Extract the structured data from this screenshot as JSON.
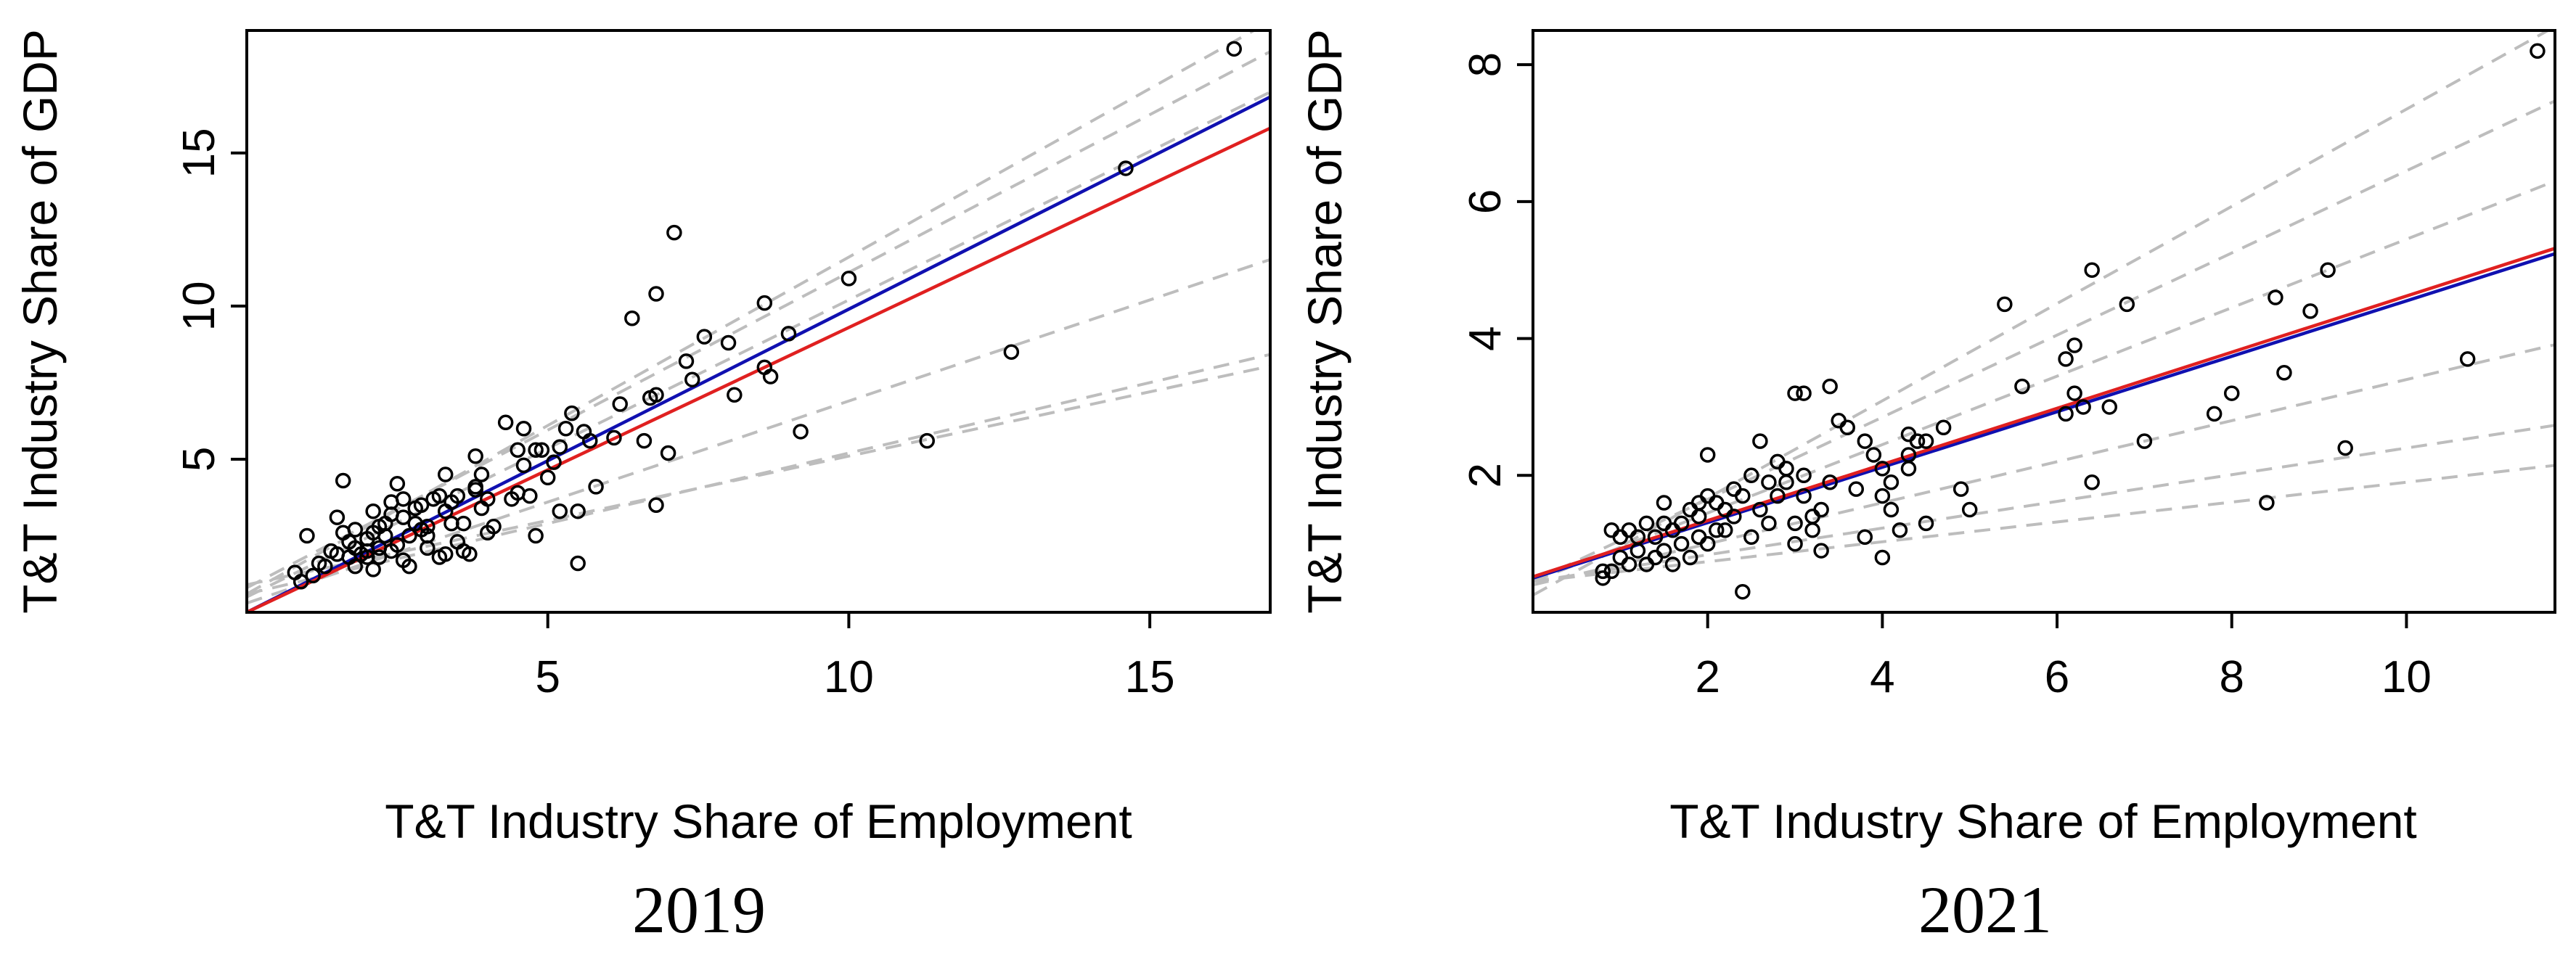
{
  "chart_data": [
    {
      "type": "scatter",
      "caption": "2019",
      "xlabel": "T&T Industry Share of Employment",
      "ylabel": "T&T Industry Share of GDP",
      "xlim": [
        0,
        17
      ],
      "ylim": [
        0,
        19
      ],
      "xticks": [
        5,
        10,
        15
      ],
      "yticks": [
        5,
        10,
        15
      ],
      "grid": false,
      "dashed_ref_lines": [
        {
          "intercept": 0.6,
          "slope": 1.1
        },
        {
          "intercept": 0.8,
          "slope": 1.03
        },
        {
          "intercept": 0.5,
          "slope": 0.97
        },
        {
          "intercept": 0.3,
          "slope": 0.66
        },
        {
          "intercept": 0.6,
          "slope": 0.46
        },
        {
          "intercept": 0.9,
          "slope": 0.42
        }
      ],
      "fit_lines": [
        {
          "name": "blue fit",
          "color": "#1010b0",
          "intercept": 0.0,
          "slope": 0.99
        },
        {
          "name": "red fit",
          "color": "#e02020",
          "intercept": 0.0,
          "slope": 0.93
        }
      ],
      "points": [
        [
          16.4,
          18.4
        ],
        [
          14.6,
          14.5
        ],
        [
          12.7,
          8.5
        ],
        [
          11.3,
          5.6
        ],
        [
          10.0,
          10.9
        ],
        [
          9.2,
          5.9
        ],
        [
          9.0,
          9.1
        ],
        [
          8.7,
          7.7
        ],
        [
          8.6,
          8.0
        ],
        [
          8.6,
          10.1
        ],
        [
          8.1,
          7.1
        ],
        [
          8.0,
          8.8
        ],
        [
          7.6,
          9.0
        ],
        [
          7.4,
          7.6
        ],
        [
          7.3,
          8.2
        ],
        [
          7.1,
          12.4
        ],
        [
          7.0,
          5.2
        ],
        [
          6.8,
          10.4
        ],
        [
          6.8,
          7.1
        ],
        [
          6.7,
          7.0
        ],
        [
          6.8,
          3.5
        ],
        [
          6.6,
          5.6
        ],
        [
          6.4,
          9.6
        ],
        [
          6.2,
          6.8
        ],
        [
          6.1,
          5.7
        ],
        [
          5.8,
          4.1
        ],
        [
          5.6,
          5.9
        ],
        [
          5.7,
          5.6
        ],
        [
          5.5,
          3.3
        ],
        [
          5.5,
          1.6
        ],
        [
          5.4,
          6.5
        ],
        [
          5.3,
          6.0
        ],
        [
          5.2,
          5.4
        ],
        [
          5.1,
          4.9
        ],
        [
          5.2,
          3.3
        ],
        [
          5.0,
          4.4
        ],
        [
          4.9,
          5.3
        ],
        [
          4.8,
          5.3
        ],
        [
          4.8,
          2.5
        ],
        [
          4.7,
          3.8
        ],
        [
          4.6,
          6.0
        ],
        [
          4.6,
          4.8
        ],
        [
          4.5,
          3.9
        ],
        [
          4.5,
          5.3
        ],
        [
          4.4,
          3.7
        ],
        [
          4.3,
          6.2
        ],
        [
          4.1,
          2.8
        ],
        [
          4.0,
          2.6
        ],
        [
          4.0,
          3.7
        ],
        [
          3.9,
          4.5
        ],
        [
          3.8,
          4.1
        ],
        [
          3.8,
          4.0
        ],
        [
          3.8,
          5.1
        ],
        [
          3.7,
          1.9
        ],
        [
          3.6,
          2.9
        ],
        [
          3.5,
          3.8
        ],
        [
          3.4,
          2.9
        ],
        [
          3.4,
          3.6
        ],
        [
          3.3,
          4.5
        ],
        [
          3.3,
          3.3
        ],
        [
          3.2,
          3.8
        ],
        [
          3.2,
          1.8
        ],
        [
          3.1,
          3.7
        ],
        [
          3.0,
          2.5
        ],
        [
          3.0,
          2.8
        ],
        [
          2.9,
          2.7
        ],
        [
          2.9,
          3.5
        ],
        [
          2.8,
          3.4
        ],
        [
          2.8,
          2.9
        ],
        [
          2.7,
          2.5
        ],
        [
          2.6,
          3.7
        ],
        [
          2.6,
          3.1
        ],
        [
          2.5,
          2.2
        ],
        [
          2.5,
          4.2
        ],
        [
          2.4,
          3.6
        ],
        [
          2.4,
          3.2
        ],
        [
          2.3,
          2.5
        ],
        [
          2.3,
          2.9
        ],
        [
          2.2,
          2.8
        ],
        [
          2.2,
          2.1
        ],
        [
          2.1,
          3.3
        ],
        [
          2.1,
          2.6
        ],
        [
          2.0,
          2.0
        ],
        [
          2.0,
          2.4
        ],
        [
          1.9,
          1.9
        ],
        [
          1.8,
          2.1
        ],
        [
          1.8,
          2.7
        ],
        [
          1.7,
          1.8
        ],
        [
          1.6,
          2.6
        ],
        [
          1.6,
          4.3
        ],
        [
          1.5,
          1.9
        ],
        [
          1.4,
          2.0
        ],
        [
          1.3,
          1.5
        ],
        [
          1.1,
          1.2
        ],
        [
          1.0,
          2.5
        ],
        [
          0.9,
          1.0
        ],
        [
          0.8,
          1.3
        ],
        [
          1.2,
          1.6
        ],
        [
          2.0,
          1.8
        ],
        [
          1.7,
          2.3
        ],
        [
          2.1,
          1.4
        ],
        [
          1.5,
          3.1
        ],
        [
          1.8,
          1.5
        ],
        [
          2.2,
          1.8
        ],
        [
          2.4,
          2.0
        ],
        [
          2.6,
          1.7
        ],
        [
          2.7,
          1.5
        ],
        [
          3.3,
          1.9
        ],
        [
          3.0,
          2.1
        ],
        [
          3.5,
          2.3
        ],
        [
          3.6,
          2.0
        ],
        [
          3.9,
          3.4
        ]
      ]
    },
    {
      "type": "scatter",
      "caption": "2021",
      "xlabel": "T&T Industry Share of Employment",
      "ylabel": "T&T Industry Share of GDP",
      "xlim": [
        0,
        11.7
      ],
      "ylim": [
        0,
        8.5
      ],
      "xticks": [
        2,
        4,
        6,
        8,
        10
      ],
      "yticks": [
        2,
        4,
        6,
        8
      ],
      "grid": false,
      "dashed_ref_lines": [
        {
          "intercept": 0.25,
          "slope": 0.71
        },
        {
          "intercept": 0.45,
          "slope": 0.6
        },
        {
          "intercept": 0.45,
          "slope": 0.5
        },
        {
          "intercept": 0.4,
          "slope": 0.3
        },
        {
          "intercept": 0.45,
          "slope": 0.195
        },
        {
          "intercept": 0.45,
          "slope": 0.145
        }
      ],
      "fit_lines": [
        {
          "name": "blue fit",
          "color": "#1010b0",
          "intercept": 0.5,
          "slope": 0.405
        },
        {
          "name": "red fit",
          "color": "#e02020",
          "intercept": 0.52,
          "slope": 0.41
        }
      ],
      "points": [
        [
          11.5,
          8.2
        ],
        [
          10.7,
          3.7
        ],
        [
          9.3,
          2.4
        ],
        [
          9.1,
          5.0
        ],
        [
          8.9,
          4.4
        ],
        [
          8.6,
          3.5
        ],
        [
          8.5,
          4.6
        ],
        [
          8.4,
          1.6
        ],
        [
          8.0,
          3.2
        ],
        [
          7.8,
          2.9
        ],
        [
          7.0,
          2.5
        ],
        [
          6.8,
          4.5
        ],
        [
          6.6,
          3.0
        ],
        [
          6.4,
          5.0
        ],
        [
          6.4,
          1.9
        ],
        [
          6.3,
          3.0
        ],
        [
          6.2,
          3.9
        ],
        [
          6.2,
          3.2
        ],
        [
          6.1,
          2.9
        ],
        [
          6.1,
          3.7
        ],
        [
          5.6,
          3.3
        ],
        [
          5.4,
          4.5
        ],
        [
          5.0,
          1.5
        ],
        [
          4.9,
          1.8
        ],
        [
          4.7,
          2.7
        ],
        [
          4.5,
          2.5
        ],
        [
          4.5,
          1.3
        ],
        [
          4.4,
          2.5
        ],
        [
          4.3,
          2.6
        ],
        [
          4.3,
          2.3
        ],
        [
          4.3,
          2.1
        ],
        [
          4.2,
          1.2
        ],
        [
          4.1,
          1.5
        ],
        [
          4.1,
          1.9
        ],
        [
          4.0,
          2.1
        ],
        [
          4.0,
          1.7
        ],
        [
          4.0,
          0.8
        ],
        [
          3.9,
          2.3
        ],
        [
          3.8,
          1.1
        ],
        [
          3.8,
          2.5
        ],
        [
          3.7,
          1.8
        ],
        [
          3.6,
          2.7
        ],
        [
          3.4,
          3.3
        ],
        [
          3.4,
          1.9
        ],
        [
          3.3,
          1.5
        ],
        [
          3.3,
          0.9
        ],
        [
          3.2,
          1.2
        ],
        [
          3.1,
          1.7
        ],
        [
          3.1,
          2.0
        ],
        [
          3.0,
          1.3
        ],
        [
          3.0,
          1.0
        ],
        [
          3.0,
          3.2
        ],
        [
          2.9,
          2.1
        ],
        [
          2.9,
          1.9
        ],
        [
          2.8,
          1.7
        ],
        [
          2.8,
          2.2
        ],
        [
          2.7,
          1.3
        ],
        [
          2.6,
          2.5
        ],
        [
          2.6,
          1.5
        ],
        [
          2.5,
          1.1
        ],
        [
          2.5,
          2.0
        ],
        [
          2.4,
          1.7
        ],
        [
          2.4,
          0.3
        ],
        [
          2.3,
          1.4
        ],
        [
          2.3,
          1.8
        ],
        [
          2.2,
          1.5
        ],
        [
          2.2,
          1.2
        ],
        [
          2.1,
          1.6
        ],
        [
          2.1,
          1.2
        ],
        [
          2.0,
          2.3
        ],
        [
          2.0,
          1.7
        ],
        [
          2.0,
          1.0
        ],
        [
          1.9,
          1.6
        ],
        [
          1.9,
          1.4
        ],
        [
          1.9,
          1.1
        ],
        [
          1.8,
          1.5
        ],
        [
          1.8,
          0.8
        ],
        [
          1.7,
          1.3
        ],
        [
          1.7,
          1.0
        ],
        [
          1.6,
          0.7
        ],
        [
          1.6,
          1.2
        ],
        [
          1.5,
          0.9
        ],
        [
          1.5,
          1.6
        ],
        [
          1.5,
          1.3
        ],
        [
          1.4,
          0.8
        ],
        [
          1.4,
          1.1
        ],
        [
          1.3,
          1.3
        ],
        [
          1.3,
          0.7
        ],
        [
          1.2,
          0.9
        ],
        [
          1.2,
          1.1
        ],
        [
          1.1,
          0.7
        ],
        [
          1.1,
          1.2
        ],
        [
          1.0,
          0.8
        ],
        [
          0.9,
          0.6
        ],
        [
          0.8,
          0.6
        ],
        [
          0.8,
          0.5
        ],
        [
          0.9,
          1.2
        ],
        [
          1.0,
          1.1
        ],
        [
          3.1,
          3.2
        ],
        [
          3.5,
          2.8
        ],
        [
          2.7,
          1.9
        ],
        [
          3.2,
          1.4
        ]
      ]
    }
  ]
}
